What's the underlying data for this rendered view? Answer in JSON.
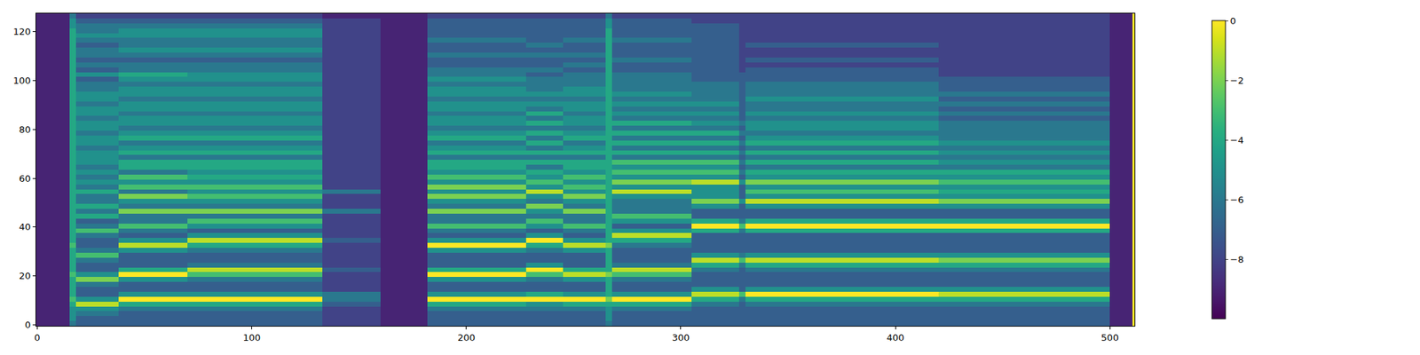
{
  "chart_data": {
    "type": "heatmap",
    "xlim": [
      -0.5,
      511.5
    ],
    "xticks": [
      0,
      100,
      200,
      300,
      400,
      500
    ],
    "ylim": [
      -0.5,
      127.5
    ],
    "yticks": [
      0,
      20,
      40,
      60,
      80,
      100,
      120
    ],
    "tick_labels": true,
    "grid": false,
    "colorbar_range": [
      -10,
      0
    ],
    "colorbar_ticks": [
      {
        "value": 0,
        "label": "0"
      },
      {
        "value": -2,
        "label": "−2"
      },
      {
        "value": -4,
        "label": "−4"
      },
      {
        "value": -6,
        "label": "−6"
      },
      {
        "value": -8,
        "label": "−8"
      }
    ],
    "x_edges": [
      -0.5,
      15,
      18,
      38,
      70,
      133,
      160,
      178,
      182,
      228,
      245,
      265,
      268,
      305,
      327,
      330,
      420,
      500,
      510.5,
      511.5
    ],
    "y_edges": [
      -0.5,
      1.5,
      3.5,
      5.5,
      7.5,
      9.5,
      11.5,
      13.5,
      15.5,
      17.5,
      19.5,
      21.5,
      23.5,
      25.5,
      27.5,
      29.5,
      31.5,
      33.5,
      35.5,
      37.5,
      39.5,
      41.5,
      43.5,
      45.5,
      47.5,
      49.5,
      51.5,
      53.5,
      55.5,
      57.5,
      59.5,
      61.5,
      63.5,
      65.5,
      67.5,
      69.5,
      71.5,
      73.5,
      75.5,
      77.5,
      79.5,
      81.5,
      83.5,
      85.5,
      87.5,
      89.5,
      91.5,
      93.5,
      95.5,
      97.5,
      99.5,
      101.5,
      103.5,
      105.5,
      107.5,
      109.5,
      111.5,
      113.5,
      115.5,
      117.5,
      119.5,
      121.5,
      123.5,
      125.5,
      127.5
    ],
    "cells": [
      [
        -9,
        -6,
        -7,
        -7,
        -7,
        -8,
        -9,
        -9,
        -7,
        -7,
        -7,
        -6,
        -7,
        -7,
        -7,
        -7,
        -7,
        -9,
        0
      ],
      [
        -9,
        -5,
        -7,
        -7,
        -7,
        -8,
        -9,
        -9,
        -7,
        -7,
        -7,
        -5,
        -7,
        -7,
        -7,
        -7,
        -7,
        -9,
        0
      ],
      [
        -9,
        -5,
        -6,
        -7,
        -7,
        -8,
        -9,
        -9,
        -7,
        -7,
        -7,
        -5,
        -7,
        -7,
        -7,
        -7,
        -7,
        -9,
        0
      ],
      [
        -9,
        -5,
        -5,
        -6,
        -6,
        -8,
        -9,
        -9,
        -6,
        -6,
        -6,
        -5,
        -6,
        -7,
        -7,
        -7,
        -7,
        -9,
        0
      ],
      [
        -9,
        -4,
        -1,
        -4,
        -4,
        -7,
        -9,
        -9,
        -4,
        -5,
        -4,
        -4,
        -4,
        -6,
        -7,
        -6,
        -6,
        -9,
        0
      ],
      [
        -9,
        -3,
        -5,
        0,
        0,
        -6,
        -9,
        -9,
        0,
        0,
        0,
        -2,
        0,
        -4,
        -6,
        -4,
        -4,
        -9,
        0
      ],
      [
        -9,
        -4,
        -7,
        -5,
        -5,
        -6,
        -9,
        -9,
        -5,
        -4,
        -5,
        -4,
        -5,
        -1,
        -3,
        0,
        -1,
        -9,
        0
      ],
      [
        -9,
        -4,
        -7,
        -7,
        -7,
        -8,
        -9,
        -9,
        -7,
        -7,
        -7,
        -4,
        -7,
        -5,
        -7,
        -5,
        -5,
        -9,
        0
      ],
      [
        -9,
        -4,
        -6,
        -7,
        -7,
        -8,
        -9,
        -9,
        -7,
        -7,
        -7,
        -4,
        -7,
        -7,
        -7,
        -7,
        -7,
        -9,
        0
      ],
      [
        -9,
        -4,
        -2,
        -5,
        -6,
        -8,
        -9,
        -9,
        -5,
        -6,
        -5,
        -4,
        -6,
        -7,
        -7,
        -7,
        -7,
        -9,
        0
      ],
      [
        -9,
        -3,
        -5,
        0,
        -3,
        -8,
        -9,
        -9,
        0,
        -3,
        -1,
        -2,
        -3,
        -7,
        -7,
        -7,
        -7,
        -9,
        0
      ],
      [
        -9,
        -4,
        -7,
        -4,
        -1,
        -7,
        -9,
        -9,
        -4,
        0,
        -4,
        -4,
        -1,
        -6,
        -7,
        -6,
        -6,
        -9,
        0
      ],
      [
        -9,
        -4,
        -7,
        -7,
        -6,
        -8,
        -9,
        -9,
        -7,
        -5,
        -7,
        -4,
        -6,
        -4,
        -6,
        -4,
        -4,
        -9,
        0
      ],
      [
        -9,
        -4,
        -6,
        -7,
        -7,
        -8,
        -9,
        -9,
        -7,
        -7,
        -7,
        -4,
        -7,
        -1,
        -3,
        -1,
        -2,
        -9,
        0
      ],
      [
        -9,
        -4,
        -3,
        -7,
        -7,
        -8,
        -9,
        -9,
        -7,
        -7,
        -7,
        -4,
        -7,
        -5,
        -6,
        -5,
        -5,
        -9,
        0
      ],
      [
        -9,
        -4,
        -6,
        -5,
        -6,
        -8,
        -9,
        -9,
        -5,
        -6,
        -5,
        -4,
        -7,
        -7,
        -7,
        -7,
        -7,
        -9,
        0
      ],
      [
        -9,
        -3,
        -7,
        -1,
        -4,
        -8,
        -9,
        -9,
        0,
        -4,
        -1,
        -2,
        -6,
        -7,
        -7,
        -7,
        -7,
        -9,
        0
      ],
      [
        -9,
        -4,
        -7,
        -5,
        -1,
        -7,
        -9,
        -9,
        -5,
        0,
        -5,
        -4,
        -4,
        -7,
        -7,
        -7,
        -7,
        -9,
        0
      ],
      [
        -9,
        -4,
        -6,
        -7,
        -5,
        -8,
        -9,
        -9,
        -7,
        -5,
        -7,
        -4,
        -1,
        -7,
        -7,
        -7,
        -7,
        -9,
        0
      ],
      [
        -9,
        -4,
        -3,
        -6,
        -7,
        -8,
        -9,
        -9,
        -6,
        -7,
        -6,
        -4,
        -5,
        -4,
        -6,
        -4,
        -4,
        -9,
        0
      ],
      [
        -9,
        -4,
        -6,
        -3,
        -5,
        -8,
        -9,
        -9,
        -3,
        -5,
        -3,
        -4,
        -7,
        0,
        -3,
        0,
        0,
        -9,
        0
      ],
      [
        -9,
        -4,
        -7,
        -6,
        -3,
        -8,
        -9,
        -9,
        -6,
        -3,
        -6,
        -4,
        -5,
        -4,
        -6,
        -4,
        -4,
        -9,
        0
      ],
      [
        -9,
        -4,
        -4,
        -6,
        -6,
        -8,
        -9,
        -9,
        -6,
        -6,
        -6,
        -4,
        -3,
        -7,
        -7,
        -7,
        -7,
        -9,
        0
      ],
      [
        -9,
        -4,
        -6,
        -2,
        -2,
        -6,
        -9,
        -9,
        -2,
        -5,
        -2,
        -4,
        -6,
        -7,
        -7,
        -7,
        -7,
        -9,
        0
      ],
      [
        -9,
        -4,
        -4,
        -6,
        -6,
        -8,
        -9,
        -9,
        -6,
        -2,
        -6,
        -4,
        -6,
        -5,
        -7,
        -5,
        -5,
        -9,
        0
      ],
      [
        -9,
        -4,
        -6,
        -5,
        -5,
        -8,
        -9,
        -9,
        -5,
        -6,
        -5,
        -4,
        -6,
        -2,
        -5,
        -1,
        -2,
        -9,
        0
      ],
      [
        -9,
        -4,
        -6,
        -2,
        -3,
        -8,
        -9,
        -9,
        -2,
        -5,
        -2,
        -4,
        -5,
        -5,
        -7,
        -5,
        -5,
        -9,
        0
      ],
      [
        -9,
        -4,
        -4,
        -6,
        -5,
        -6,
        -9,
        -9,
        -5,
        -1,
        -5,
        -4,
        -1,
        -5,
        -7,
        -3,
        -4,
        -9,
        0
      ],
      [
        -9,
        -4,
        -6,
        -3,
        -3,
        -8,
        -9,
        -9,
        -2,
        -5,
        -3,
        -4,
        -5,
        -5,
        -7,
        -5,
        -5,
        -9,
        0
      ],
      [
        -9,
        -4,
        -5,
        -5,
        -5,
        -8,
        -9,
        -9,
        -5,
        -3,
        -5,
        -4,
        -2,
        -1,
        -5,
        -2,
        -3,
        -9,
        0
      ],
      [
        -9,
        -4,
        -6,
        -3,
        -4,
        -8,
        -9,
        -9,
        -3,
        -5,
        -3,
        -4,
        -5,
        -5,
        -7,
        -5,
        -5,
        -9,
        0
      ],
      [
        -9,
        -4,
        -5,
        -6,
        -5,
        -8,
        -9,
        -9,
        -5,
        -4,
        -5,
        -4,
        -3,
        -3,
        -6,
        -4,
        -4,
        -9,
        0
      ],
      [
        -9,
        -4,
        -6,
        -4,
        -4,
        -8,
        -9,
        -9,
        -4,
        -6,
        -4,
        -4,
        -5,
        -5,
        -7,
        -6,
        -6,
        -9,
        0
      ],
      [
        -9,
        -4,
        -5,
        -4,
        -4,
        -8,
        -9,
        -9,
        -4,
        -4,
        -4,
        -4,
        -3,
        -3,
        -6,
        -4,
        -5,
        -9,
        0
      ],
      [
        -9,
        -4,
        -5,
        -6,
        -6,
        -8,
        -9,
        -9,
        -6,
        -6,
        -6,
        -4,
        -6,
        -6,
        -7,
        -6,
        -6,
        -9,
        0
      ],
      [
        -9,
        -4,
        -5,
        -4,
        -4,
        -8,
        -9,
        -9,
        -4,
        -4,
        -4,
        -4,
        -4,
        -4,
        -6,
        -4,
        -5,
        -9,
        0
      ],
      [
        -9,
        -4,
        -6,
        -5,
        -5,
        -8,
        -9,
        -9,
        -5,
        -6,
        -5,
        -4,
        -6,
        -6,
        -7,
        -6,
        -6,
        -9,
        0
      ],
      [
        -9,
        -4,
        -5,
        -6,
        -6,
        -8,
        -9,
        -9,
        -6,
        -4,
        -6,
        -4,
        -4,
        -4,
        -6,
        -4,
        -5,
        -9,
        0
      ],
      [
        -9,
        -4,
        -5,
        -4,
        -4,
        -8,
        -9,
        -9,
        -4,
        -6,
        -4,
        -4,
        -6,
        -6,
        -7,
        -5,
        -6,
        -9,
        0
      ],
      [
        -9,
        -4,
        -6,
        -5,
        -5,
        -8,
        -9,
        -9,
        -5,
        -4,
        -5,
        -4,
        -4,
        -4,
        -6,
        -6,
        -6,
        -9,
        0
      ],
      [
        -9,
        -4,
        -5,
        -6,
        -6,
        -8,
        -9,
        -9,
        -6,
        -6,
        -6,
        -4,
        -6,
        -6,
        -7,
        -5,
        -6,
        -9,
        0
      ],
      [
        -9,
        -4,
        -5,
        -5,
        -5,
        -8,
        -9,
        -9,
        -5,
        -4,
        -5,
        -4,
        -4,
        -5,
        -6,
        -5,
        -6,
        -9,
        0
      ],
      [
        -9,
        -4,
        -6,
        -5,
        -5,
        -8,
        -9,
        -9,
        -5,
        -6,
        -5,
        -4,
        -6,
        -6,
        -7,
        -6,
        -7,
        -9,
        0
      ],
      [
        -9,
        -4,
        -5,
        -6,
        -6,
        -8,
        -9,
        -9,
        -6,
        -4,
        -6,
        -4,
        -5,
        -5,
        -7,
        -5,
        -6,
        -9,
        0
      ],
      [
        -9,
        -4,
        -5,
        -5,
        -5,
        -8,
        -9,
        -9,
        -5,
        -6,
        -5,
        -4,
        -6,
        -6,
        -7,
        -6,
        -7,
        -9,
        0
      ],
      [
        -9,
        -4,
        -6,
        -5,
        -5,
        -8,
        -9,
        -9,
        -5,
        -5,
        -5,
        -4,
        -5,
        -5,
        -7,
        -6,
        -6,
        -9,
        0
      ],
      [
        -9,
        -4,
        -5,
        -6,
        -6,
        -8,
        -9,
        -9,
        -6,
        -6,
        -6,
        -4,
        -6,
        -6,
        -7,
        -5,
        -7,
        -9,
        0
      ],
      [
        -9,
        -4,
        -5,
        -5,
        -5,
        -8,
        -9,
        -9,
        -5,
        -5,
        -5,
        -4,
        -5,
        -6,
        -7,
        -6,
        -6,
        -9,
        0
      ],
      [
        -9,
        -4,
        -6,
        -5,
        -5,
        -8,
        -9,
        -9,
        -5,
        -6,
        -5,
        -4,
        -6,
        -6,
        -7,
        -6,
        -7,
        -9,
        0
      ],
      [
        -9,
        -4,
        -6,
        -6,
        -6,
        -8,
        -9,
        -9,
        -6,
        -6,
        -6,
        -4,
        -6,
        -6,
        -7,
        -6,
        -7,
        -9,
        0
      ],
      [
        -9,
        -4,
        -7,
        -5,
        -5,
        -8,
        -9,
        -9,
        -5,
        -6,
        -6,
        -4,
        -6,
        -7,
        -7,
        -7,
        -7,
        -9,
        0
      ],
      [
        -9,
        -4,
        -5,
        -4,
        -5,
        -8,
        -9,
        -9,
        -6,
        -7,
        -6,
        -4,
        -6,
        -7,
        -7,
        -7,
        -8,
        -9,
        0
      ],
      [
        -9,
        -4,
        -7,
        -6,
        -6,
        -8,
        -9,
        -9,
        -6,
        -6,
        -7,
        -4,
        -7,
        -7,
        -8,
        -7,
        -8,
        -9,
        0
      ],
      [
        -9,
        -4,
        -6,
        -6,
        -6,
        -8,
        -9,
        -9,
        -7,
        -7,
        -6,
        -4,
        -7,
        -7,
        -8,
        -8,
        -8,
        -9,
        0
      ],
      [
        -9,
        -4,
        -7,
        -7,
        -7,
        -8,
        -9,
        -9,
        -7,
        -7,
        -7,
        -4,
        -6,
        -7,
        -8,
        -7,
        -8,
        -9,
        0
      ],
      [
        -9,
        -4,
        -6,
        -6,
        -6,
        -8,
        -9,
        -9,
        -6,
        -6,
        -6,
        -4,
        -7,
        -7,
        -8,
        -8,
        -8,
        -9,
        0
      ],
      [
        -9,
        -4,
        -6,
        -5,
        -5,
        -8,
        -9,
        -9,
        -7,
        -7,
        -7,
        -4,
        -7,
        -7,
        -8,
        -8,
        -8,
        -9,
        0
      ],
      [
        -9,
        -4,
        -7,
        -6,
        -6,
        -8,
        -9,
        -9,
        -7,
        -6,
        -7,
        -4,
        -7,
        -7,
        -8,
        -7,
        -8,
        -9,
        0
      ],
      [
        -9,
        -4,
        -6,
        -6,
        -6,
        -8,
        -9,
        -9,
        -6,
        -7,
        -6,
        -4,
        -6,
        -7,
        -8,
        -8,
        -8,
        -9,
        0
      ],
      [
        -9,
        -4,
        -5,
        -5,
        -5,
        -8,
        -9,
        -9,
        -7,
        -7,
        -7,
        -4,
        -7,
        -7,
        -8,
        -8,
        -8,
        -9,
        0
      ],
      [
        -9,
        -4,
        -6,
        -5,
        -5,
        -8,
        -9,
        -9,
        -7,
        -7,
        -7,
        -4,
        -7,
        -7,
        -8,
        -8,
        -8,
        -9,
        0
      ],
      [
        -9,
        -5,
        -6,
        -6,
        -6,
        -8,
        -9,
        -9,
        -7,
        -7,
        -7,
        -5,
        -7,
        -7,
        -8,
        -8,
        -8,
        -9,
        0
      ],
      [
        -9,
        -5,
        -7,
        -7,
        -7,
        -8,
        -9,
        -9,
        -7,
        -7,
        -7,
        -5,
        -7,
        -8,
        -8,
        -8,
        -8,
        -9,
        0
      ],
      [
        -9,
        -6,
        -8,
        -8,
        -8,
        -9,
        -9,
        -9,
        -8,
        -8,
        -8,
        -6,
        -8,
        -8,
        -8,
        -8,
        -8,
        -9,
        0
      ]
    ]
  }
}
